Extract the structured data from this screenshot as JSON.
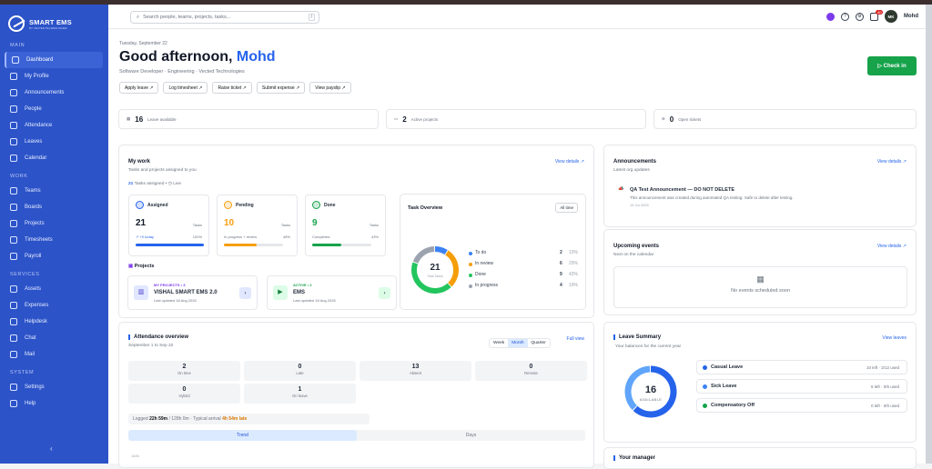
{
  "brand": {
    "name": "SMART EMS",
    "tagline": "BY VECTED TECHNOLOGIES"
  },
  "sidebar": {
    "sections": [
      {
        "title": "MAIN",
        "items": [
          "Dashboard",
          "My Profile",
          "Announcements",
          "People",
          "Attendance",
          "Leaves",
          "Calendar"
        ]
      },
      {
        "title": "WORK",
        "items": [
          "Teams",
          "Boards",
          "Projects",
          "Timesheets",
          "Payroll"
        ]
      },
      {
        "title": "SERVICES",
        "items": [
          "Assets",
          "Expenses",
          "Helpdesk",
          "Chat",
          "Mail"
        ]
      },
      {
        "title": "SYSTEM",
        "items": [
          "Settings",
          "Help"
        ]
      }
    ],
    "active": "Dashboard",
    "collapse": "‹"
  },
  "header": {
    "search_placeholder": "Search people, teams, projects, tasks...",
    "search_kbd": "/",
    "notif_count": "40",
    "user_initials": "MK",
    "user_name": "Mohd"
  },
  "page": {
    "date": "Tuesday, September 22",
    "greeting": "Good afternoon,",
    "name": "Mohd",
    "role": "Software Developer · Engineering · Vected Technologies",
    "checkin": "▷ Check in"
  },
  "quick_actions": [
    "Apply leave ↗",
    "Log timesheet ↗",
    "Raise ticket ↗",
    "Submit expense ↗",
    "View payslip ↗"
  ],
  "stats": [
    {
      "value": "16",
      "label": "Leave available"
    },
    {
      "value": "2",
      "label": "Active projects"
    },
    {
      "value": "0",
      "label": "Open tickets"
    }
  ],
  "my_work": {
    "title": "My work",
    "subtitle": "Tasks and projects assigned to you",
    "view": "View details ↗",
    "assigned_count": "21",
    "assigned_text": "Tasks assigned",
    "live": "◷ Live",
    "tiles": [
      {
        "label": "Assigned",
        "value": "21",
        "sub": "Tasks",
        "foot1": "↗ +0 today",
        "foot2": "100%",
        "pct": 100,
        "color": "#2563eb"
      },
      {
        "label": "Pending",
        "value": "10",
        "sub": "Tasks",
        "foot1": "In progress + review",
        "foot2": "48%",
        "pct": 48,
        "color": "#f59e0b"
      },
      {
        "label": "Done",
        "value": "9",
        "sub": "Tasks",
        "foot1": "Completed",
        "foot2": "43%",
        "pct": 43,
        "color": "#16a34a"
      }
    ],
    "projects_title": "Projects",
    "projects": [
      {
        "tag": "MY PROJECTS • 3",
        "name": "VISHAL SMART EMS 2.0",
        "updated": "Last updated 18 Aug 2026"
      },
      {
        "tag": "ACTIVE • 2",
        "name": "EMS",
        "updated": "Last updated 18 Aug 2026"
      }
    ]
  },
  "task_overview": {
    "title": "Task Overview",
    "filter": "All time",
    "total": "21",
    "total_label": "Total Tasks",
    "items": [
      {
        "label": "To do",
        "count": "2",
        "pct": "10%",
        "color": "#3b82f6"
      },
      {
        "label": "In review",
        "count": "6",
        "pct": "29%",
        "color": "#f59e0b"
      },
      {
        "label": "Done",
        "count": "9",
        "pct": "43%",
        "color": "#22c55e"
      },
      {
        "label": "In progress",
        "count": "4",
        "pct": "19%",
        "color": "#9ca3af"
      }
    ]
  },
  "announcements": {
    "title": "Announcements",
    "subtitle": "Latest org updates",
    "view": "View details ↗",
    "item_title": "QA Test Announcement — DO NOT DELETE",
    "item_body": "This announcement was created during automated QA testing. Safe to delete after testing.",
    "item_date": "14 Jul 2026"
  },
  "events": {
    "title": "Upcoming events",
    "subtitle": "Next on the calendar",
    "view": "View details ↗",
    "empty": "No events scheduled soon"
  },
  "attendance": {
    "title": "Attendance overview",
    "subtitle": "September 1 to Sep 22",
    "ranges": [
      "Week",
      "Month",
      "Quarter"
    ],
    "active_range": "Month",
    "full": "Full view",
    "cells": [
      {
        "v": "2",
        "l": "On time"
      },
      {
        "v": "0",
        "l": "Late"
      },
      {
        "v": "13",
        "l": "Absent"
      },
      {
        "v": "0",
        "l": "Remote"
      },
      {
        "v": "0",
        "l": "Hybrid"
      },
      {
        "v": "1",
        "l": "On leave"
      }
    ],
    "logged_label": "Logged",
    "logged": "22h 59m",
    "logged_total": "/ 128h 0m",
    "arrival_label": "Typical arrival",
    "arrival": "4h 54m late",
    "tabs": [
      "Trend",
      "Days"
    ],
    "y_tick": "140h"
  },
  "leave": {
    "title": "Leave Summary",
    "subtitle": "Your balances for the current year",
    "view": "View leaves",
    "total": "16",
    "total_label": "AVAILABLE",
    "items": [
      {
        "name": "Casual Leave",
        "detail": "10 left · 2/12 used",
        "color": "#2563eb"
      },
      {
        "name": "Sick Leave",
        "detail": "6 left · 0/6 used",
        "color": "#3b82f6"
      },
      {
        "name": "Compensatory Off",
        "detail": "0 left · 0/0 used",
        "color": "#16a34a"
      }
    ]
  },
  "manager": {
    "title": "Your manager"
  }
}
